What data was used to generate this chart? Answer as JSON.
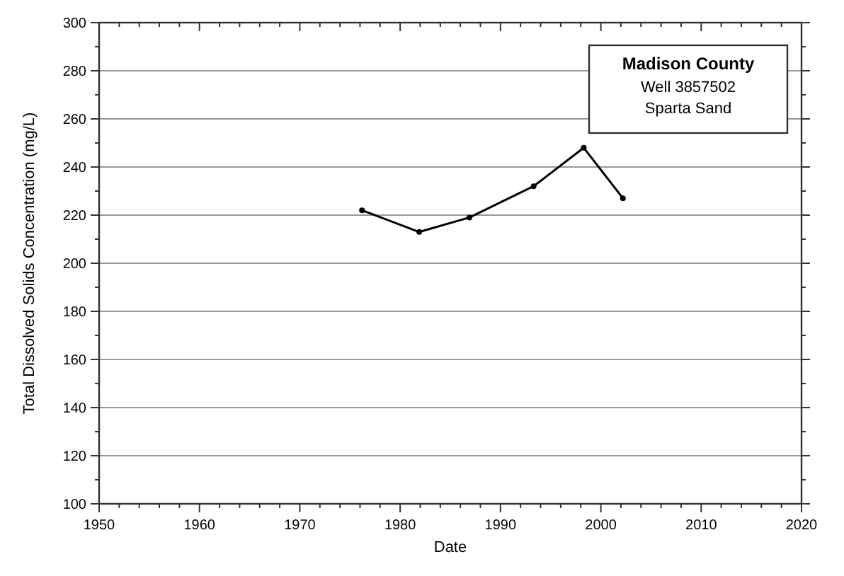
{
  "chart_data": {
    "type": "line",
    "title": "Madison County",
    "subtitle": "Well 3857502",
    "annotations": [
      "Sparta Sand"
    ],
    "xlabel": "Date",
    "ylabel": "Total Dissolved Solids Concentration (mg/L)",
    "xlim": [
      1950,
      2020
    ],
    "ylim": [
      100,
      300
    ],
    "xticks": [
      1950,
      {
        "value": 1952,
        "label": null
      },
      {
        "value": 1954,
        "label": null
      },
      {
        "value": 1956,
        "label": null
      },
      {
        "value": 1958,
        "label": null
      },
      1960,
      {
        "value": 1962,
        "label": null
      },
      {
        "value": 1964,
        "label": null
      },
      {
        "value": 1966,
        "label": null
      },
      {
        "value": 1968,
        "label": null
      },
      1970,
      {
        "value": 1972,
        "label": null
      },
      {
        "value": 1974,
        "label": null
      },
      {
        "value": 1976,
        "label": null
      },
      {
        "value": 1978,
        "label": null
      },
      1980,
      {
        "value": 1982,
        "label": null
      },
      {
        "value": 1984,
        "label": null
      },
      {
        "value": 1986,
        "label": null
      },
      {
        "value": 1988,
        "label": null
      },
      1990,
      {
        "value": 1992,
        "label": null
      },
      {
        "value": 1994,
        "label": null
      },
      {
        "value": 1996,
        "label": null
      },
      {
        "value": 1998,
        "label": null
      },
      2000,
      {
        "value": 2002,
        "label": null
      },
      {
        "value": 2004,
        "label": null
      },
      {
        "value": 2006,
        "label": null
      },
      {
        "value": 2008,
        "label": null
      },
      2010,
      {
        "value": 2012,
        "label": null
      },
      {
        "value": 2014,
        "label": null
      },
      {
        "value": 2016,
        "label": null
      },
      {
        "value": 2018,
        "label": null
      },
      2020
    ],
    "yticks": [
      100,
      {
        "value": 110,
        "label": null
      },
      120,
      {
        "value": 130,
        "label": null
      },
      140,
      {
        "value": 150,
        "label": null
      },
      160,
      {
        "value": 170,
        "label": null
      },
      180,
      {
        "value": 190,
        "label": null
      },
      200,
      {
        "value": 210,
        "label": null
      },
      220,
      {
        "value": 230,
        "label": null
      },
      240,
      {
        "value": 250,
        "label": null
      },
      260,
      {
        "value": 270,
        "label": null
      },
      280,
      {
        "value": 290,
        "label": null
      },
      300
    ],
    "grid": "y",
    "marker": "circle",
    "line_style": "solid",
    "series": [
      {
        "color": "#000000",
        "x": [
          1976.2,
          1981.9,
          1986.9,
          1993.3,
          1998.3,
          2002.2
        ],
        "values": [
          222,
          213,
          219,
          232,
          248,
          227
        ]
      }
    ]
  }
}
